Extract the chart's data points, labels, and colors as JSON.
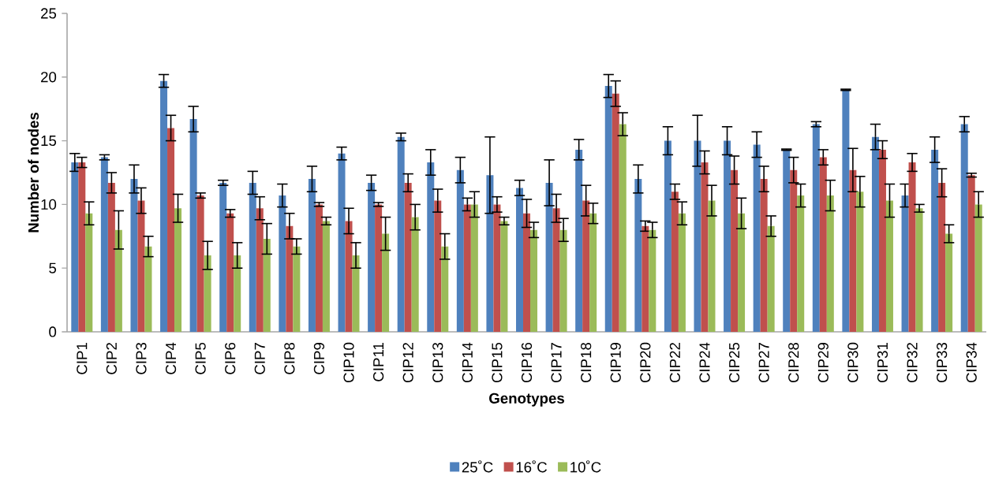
{
  "chart_data": {
    "type": "bar",
    "xlabel": "Genotypes",
    "ylabel": "Number of nodes",
    "categories": [
      "CIP1",
      "CIP2",
      "CIP3",
      "CIP4",
      "CIP5",
      "CIP6",
      "CIP7",
      "CIP8",
      "CIP9",
      "CIP10",
      "CIP11",
      "CIP12",
      "CIP13",
      "CIP14",
      "CIP15",
      "CIP16",
      "CIP17",
      "CIP18",
      "CIP19",
      "CIP20",
      "CIP22",
      "CIP24",
      "CIP25",
      "CIP27",
      "CIP28",
      "CIP29",
      "CIP30",
      "CIP31",
      "CIP32",
      "CIP33",
      "CIP34"
    ],
    "series": [
      {
        "name": "25˚C",
        "color": "#4f81bd",
        "values": [
          13.3,
          13.7,
          12.0,
          19.7,
          16.7,
          11.7,
          11.7,
          10.7,
          12.0,
          14.0,
          11.7,
          15.3,
          13.3,
          12.7,
          12.3,
          11.3,
          11.7,
          14.3,
          19.3,
          12.0,
          15.0,
          15.0,
          15.0,
          14.7,
          14.3,
          16.3,
          19.0,
          15.3,
          10.7,
          14.3,
          16.3
        ],
        "errors": [
          0.7,
          0.2,
          1.1,
          0.5,
          1.0,
          0.2,
          0.9,
          0.9,
          1.0,
          0.5,
          0.6,
          0.3,
          1.0,
          1.0,
          3.0,
          0.6,
          1.8,
          0.8,
          0.9,
          1.1,
          1.1,
          2.0,
          1.1,
          1.0,
          0.05,
          0.2,
          0.05,
          1.0,
          0.9,
          1.0,
          0.6
        ]
      },
      {
        "name": "16˚C",
        "color": "#c0504d",
        "values": [
          13.3,
          11.7,
          10.3,
          16.0,
          10.7,
          9.3,
          9.7,
          8.3,
          10.0,
          8.7,
          10.0,
          11.7,
          10.3,
          10.0,
          10.0,
          9.3,
          9.7,
          10.3,
          18.7,
          8.3,
          11.0,
          13.3,
          12.7,
          12.0,
          12.7,
          13.7,
          12.7,
          14.3,
          13.3,
          11.7,
          12.3
        ],
        "errors": [
          0.4,
          0.8,
          1.0,
          1.0,
          0.2,
          0.3,
          0.9,
          1.0,
          0.15,
          1.0,
          0.15,
          0.7,
          0.9,
          0.5,
          0.6,
          1.1,
          1.1,
          1.2,
          1.0,
          0.4,
          0.6,
          0.9,
          1.1,
          1.0,
          1.0,
          0.6,
          1.7,
          0.7,
          0.7,
          1.1,
          0.15
        ]
      },
      {
        "name": "10˚C",
        "color": "#9bbb59",
        "values": [
          9.3,
          8.0,
          6.7,
          9.7,
          6.0,
          6.0,
          7.3,
          6.7,
          8.7,
          6.0,
          7.7,
          9.0,
          6.7,
          10.0,
          8.7,
          8.0,
          8.0,
          9.3,
          16.3,
          8.0,
          9.3,
          10.3,
          9.3,
          8.3,
          10.7,
          10.7,
          11.0,
          10.3,
          9.7,
          7.7,
          10.0
        ],
        "errors": [
          0.9,
          1.5,
          0.8,
          1.1,
          1.1,
          1.0,
          1.2,
          0.6,
          0.3,
          1.0,
          1.3,
          1.0,
          1.0,
          1.0,
          0.3,
          0.6,
          0.9,
          0.8,
          0.9,
          0.6,
          0.9,
          1.2,
          1.2,
          0.8,
          0.9,
          1.2,
          1.2,
          1.3,
          0.3,
          0.7,
          1.0
        ]
      }
    ],
    "ylim": [
      0,
      25
    ],
    "yticks": [
      0,
      5,
      10,
      15,
      20,
      25
    ],
    "legend": "bottom"
  }
}
